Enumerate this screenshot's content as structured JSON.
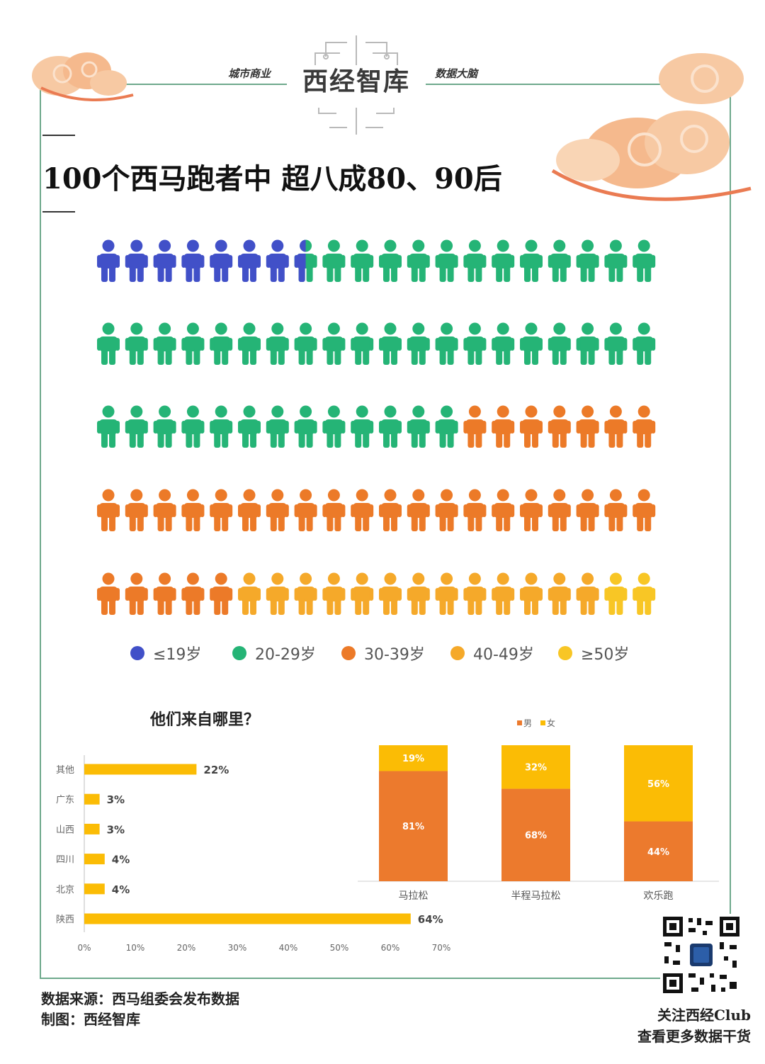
{
  "header": {
    "brand": "西经智库",
    "tagline_left": "城市商业",
    "tagline_right": "数据大脑",
    "title": "100个西马跑者中 超八成80、90后"
  },
  "colors": {
    "frame": "#6ea98c",
    "under19": "#4150c8",
    "age20s": "#25b476",
    "age30s": "#ec7a28",
    "age40s": "#f5a92a",
    "over50": "#f8c625",
    "male": "#ec7a2d",
    "female": "#fbbc05",
    "hbar": "#fbbc05"
  },
  "chart_data": [
    {
      "type": "pictogram",
      "total": 100,
      "rows": 5,
      "per_row": 20,
      "categories": [
        {
          "label": "≤19岁",
          "value": 7.5,
          "color_key": "under19"
        },
        {
          "label": "20-29岁",
          "value": 45.5,
          "color_key": "age20s"
        },
        {
          "label": "30-39岁",
          "value": 32,
          "color_key": "age30s"
        },
        {
          "label": "40-49岁",
          "value": 13,
          "color_key": "age40s"
        },
        {
          "label": "≥50岁",
          "value": 2,
          "color_key": "over50"
        }
      ]
    },
    {
      "type": "bar",
      "orientation": "horizontal",
      "title": "他们来自哪里？",
      "categories": [
        "其他",
        "广东",
        "山西",
        "四川",
        "北京",
        "陕西"
      ],
      "values": [
        22,
        3,
        3,
        4,
        4,
        64
      ],
      "value_labels": [
        "22%",
        "3%",
        "3%",
        "4%",
        "4%",
        "64%"
      ],
      "xlim": [
        0,
        70
      ],
      "xticks": [
        "0%",
        "10%",
        "20%",
        "30%",
        "40%",
        "50%",
        "60%",
        "70%"
      ]
    },
    {
      "type": "bar",
      "stacked": true,
      "categories": [
        "马拉松",
        "半程马拉松",
        "欢乐跑"
      ],
      "legend": [
        "男",
        "女"
      ],
      "series": [
        {
          "name": "男",
          "values": [
            81,
            68,
            44
          ],
          "labels": [
            "81%",
            "68%",
            "44%"
          ]
        },
        {
          "name": "女",
          "values": [
            19,
            32,
            56
          ],
          "labels": [
            "19%",
            "32%",
            "56%"
          ]
        }
      ],
      "ylim": [
        0,
        100
      ]
    }
  ],
  "footer": {
    "source": "数据来源：西马组委会发布数据",
    "credit": "制图：西经智库",
    "follow_line1": "关注西经Club",
    "follow_line2": "查看更多数据干货"
  }
}
